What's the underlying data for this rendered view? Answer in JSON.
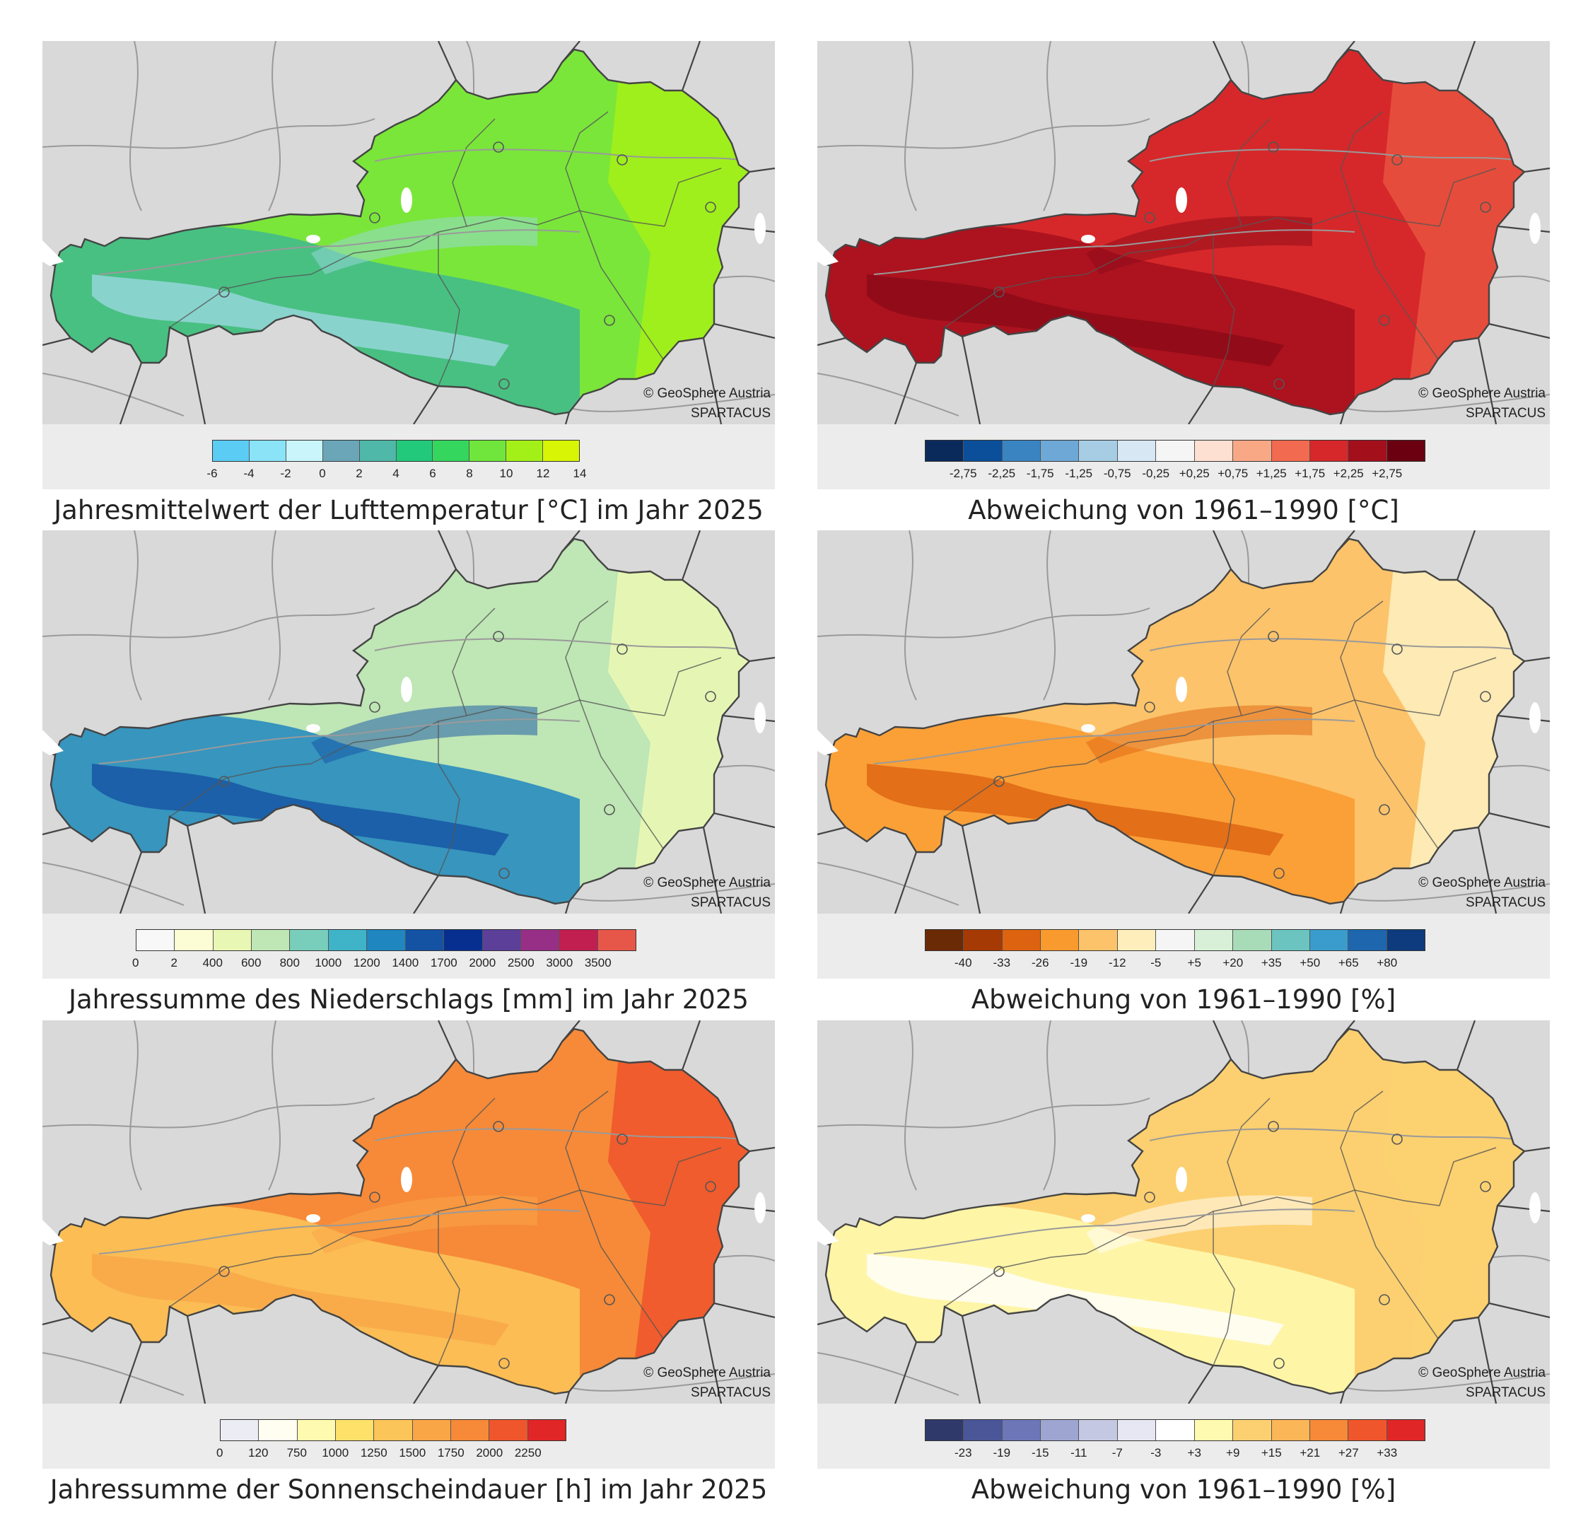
{
  "credit": {
    "line1": "© GeoSphere Austria",
    "line2": "SPARTACUS"
  },
  "map_colors": {
    "background": "#d9d9d9",
    "rivers": "#9a9a9a",
    "borders": "#444444"
  },
  "panels": [
    {
      "id": "temp-mean",
      "caption": "Jahresmittelwert der Lufttemperatur [°C] im Jahr 2025",
      "legend": {
        "colors": [
          "#5bcdf4",
          "#8ae3f7",
          "#c9f5fb",
          "#6aa6b8",
          "#4fb8a8",
          "#22c97a",
          "#35d65e",
          "#70e63c",
          "#a3f019",
          "#d8f505"
        ],
        "labels": [
          "-6",
          "-4",
          "-2",
          "0",
          "2",
          "4",
          "6",
          "8",
          "10",
          "12",
          "14"
        ],
        "label_mode": "edges"
      },
      "fill": {
        "main": "#7ae63a",
        "east": "#a3f019",
        "alps": "#3fb88f",
        "peaks": "#9ad7e0"
      }
    },
    {
      "id": "temp-anomaly",
      "caption": "Abweichung von 1961–1990 [°C]",
      "legend": {
        "colors": [
          "#0b2a5c",
          "#0b4f9a",
          "#3b84c2",
          "#6ea8d6",
          "#a7cde4",
          "#d8e7f4",
          "#f5f5f5",
          "#fde0d2",
          "#f9a886",
          "#f26a4f",
          "#d6282a",
          "#a40f1c",
          "#6a0010"
        ],
        "labels": [
          "-2,75",
          "-2,25",
          "-1,75",
          "-1,25",
          "-0,75",
          "-0,25",
          "+0,25",
          "+0,75",
          "+1,25",
          "+1,75",
          "+2,25",
          "+2,75"
        ],
        "label_mode": "inner"
      },
      "fill": {
        "main": "#d6282a",
        "east": "#e8503d",
        "alps": "#a40f1c",
        "peaks": "#8c0a18"
      }
    },
    {
      "id": "precip-sum",
      "caption": "Jahressumme des Niederschlags [mm] im Jahr 2025",
      "legend": {
        "colors": [
          "#f8f8f8",
          "#fdfdd5",
          "#e9f7b4",
          "#bfe6b5",
          "#79cdbb",
          "#3fb3c7",
          "#1f86c0",
          "#1452a3",
          "#062f8f",
          "#5b3f99",
          "#972f87",
          "#c11f4f",
          "#e6574a"
        ],
        "labels": [
          "0",
          "2",
          "400",
          "600",
          "800",
          "1000",
          "1200",
          "1400",
          "1700",
          "2000",
          "2500",
          "3000",
          "3500"
        ],
        "label_mode": "first_inner"
      },
      "fill": {
        "main": "#bfe6b5",
        "east": "#e9f7b4",
        "alps": "#1f86c0",
        "peaks": "#1452a3"
      }
    },
    {
      "id": "precip-anomaly",
      "caption": "Abweichung von 1961–1990 [%]",
      "legend": {
        "colors": [
          "#6b2a06",
          "#a63a04",
          "#dd6310",
          "#f99a2e",
          "#fcc36a",
          "#fdeebc",
          "#f5f5f5",
          "#d8f0d8",
          "#a8dcb8",
          "#6cc4c0",
          "#3a9ccc",
          "#1e66ad",
          "#0e3b7d"
        ],
        "labels": [
          "-40",
          "-33",
          "-26",
          "-19",
          "-12",
          "-5",
          "+5",
          "+20",
          "+35",
          "+50",
          "+65",
          "+80"
        ],
        "label_mode": "inner"
      },
      "fill": {
        "main": "#fcc36a",
        "east": "#fdeebc",
        "alps": "#f99a2e",
        "peaks": "#dd6310"
      }
    },
    {
      "id": "sun-sum",
      "caption": "Jahressumme der Sonnenscheindauer [h] im Jahr 2025",
      "legend": {
        "colors": [
          "#ececf4",
          "#fffef0",
          "#fefbb0",
          "#fde169",
          "#fbc559",
          "#f9a647",
          "#f68a38",
          "#f0562c",
          "#e02626"
        ],
        "labels": [
          "0",
          "120",
          "750",
          "1000",
          "1250",
          "1500",
          "1750",
          "2000",
          "2250"
        ],
        "label_mode": "first_inner"
      },
      "fill": {
        "main": "#f68a38",
        "east": "#f0562c",
        "alps": "#fbc559",
        "peaks": "#f9a647"
      }
    },
    {
      "id": "sun-anomaly",
      "caption": "Abweichung von 1961–1990 [%]",
      "legend": {
        "colors": [
          "#303a6a",
          "#4b5699",
          "#6d77b8",
          "#9ea5d1",
          "#c4c8e2",
          "#e6e7f2",
          "#ffffff",
          "#fefbb0",
          "#fcd070",
          "#fbb657",
          "#f68a38",
          "#f0562c",
          "#e02626"
        ],
        "labels": [
          "-23",
          "-19",
          "-15",
          "-11",
          "-7",
          "-3",
          "+3",
          "+9",
          "+15",
          "+21",
          "+27",
          "+33"
        ],
        "label_mode": "inner"
      },
      "fill": {
        "main": "#fcd070",
        "east": "#fcd070",
        "alps": "#fefbb0",
        "peaks": "#ffffff"
      }
    }
  ]
}
